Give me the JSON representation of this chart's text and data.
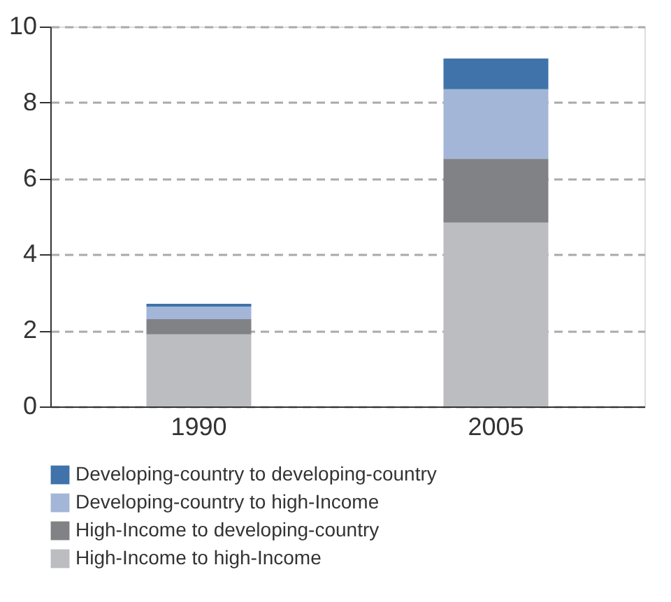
{
  "chart_data": {
    "type": "bar",
    "stacked": true,
    "categories": [
      "1990",
      "2005"
    ],
    "series": [
      {
        "name": "High-Income to high-Income",
        "color": "#bcbdc1",
        "values": [
          1.9,
          4.84
        ]
      },
      {
        "name": "High-Income to developing-country",
        "color": "#818285",
        "values": [
          0.4,
          1.68
        ]
      },
      {
        "name": "Developing-country to high-Income",
        "color": "#a4b6d7",
        "values": [
          0.33,
          1.83
        ]
      },
      {
        "name": "Developing-country to developing-country",
        "color": "#3f73aa",
        "values": [
          0.07,
          0.81
        ]
      }
    ],
    "ylim": [
      0,
      10
    ],
    "yticks": [
      0,
      2,
      4,
      6,
      8,
      10
    ],
    "grid": "y",
    "legend": "bottom"
  }
}
